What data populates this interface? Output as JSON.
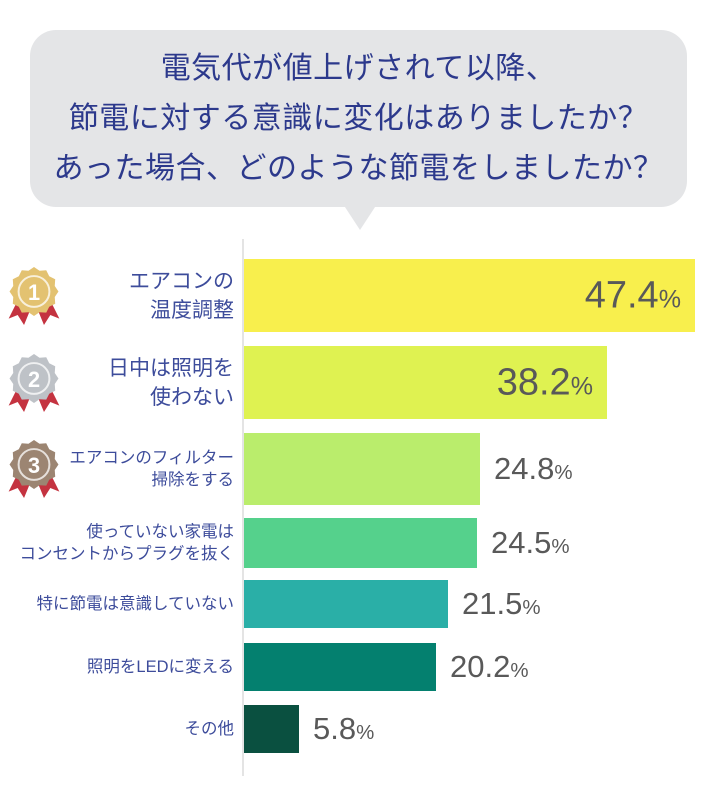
{
  "bubble": {
    "lines": [
      "電気代が値上げされて以降、",
      "節電に対する意識に変化はありましたか？",
      "あった場合、どのような節電をしましたか？"
    ],
    "bg_color": "#e4e5e7",
    "text_color": "#2c398c"
  },
  "chart_data": {
    "type": "bar",
    "orientation": "horizontal",
    "title": "電気代が値上げされて以降、節電に対する意識に変化はありましたか？あった場合、どのような節電をしましたか？",
    "unit": "%",
    "xlim": [
      0,
      50
    ],
    "grid": false,
    "legend": "none",
    "categories": [
      "エアコンの温度調整",
      "日中は照明を使わない",
      "エアコンのフィルター掃除をする",
      "使っていない家電はコンセントからプラグを抜く",
      "特に節電は意識していない",
      "照明をLEDに変える",
      "その他"
    ],
    "values": [
      47.4,
      38.2,
      24.8,
      24.5,
      21.5,
      20.2,
      5.8
    ],
    "value_label_color": "#595959",
    "category_label_color": "#3d4c9b",
    "axis_line_color": "#e4e4e4",
    "ribbon_color": "#c43340",
    "medal_colors": {
      "1": {
        "color": "#e3c271",
        "number_color": "#ffffff"
      },
      "2": {
        "color": "#bec2c7",
        "number_color": "#ffffff"
      },
      "3": {
        "color": "#9c8572",
        "number_color": "#ffffff"
      }
    },
    "items": [
      {
        "rank": 1,
        "label_lines": [
          "エアコンの",
          "温度調整"
        ],
        "value": 47.4,
        "color": "#f8ef4d",
        "value_label_position": "inside"
      },
      {
        "rank": 2,
        "label_lines": [
          "日中は照明を",
          "使わない"
        ],
        "value": 38.2,
        "color": "#dff251",
        "value_label_position": "inside"
      },
      {
        "rank": 3,
        "label_lines": [
          "エアコンのフィルター",
          "掃除をする"
        ],
        "value": 24.8,
        "color": "#baed6c",
        "value_label_position": "outside"
      },
      {
        "label_lines": [
          "使っていない家電は",
          "コンセントからプラグを抜く"
        ],
        "value": 24.5,
        "color": "#55d18c",
        "value_label_position": "outside"
      },
      {
        "label_lines": [
          "特に節電は意識していない"
        ],
        "value": 21.5,
        "color": "#2aafa7",
        "value_label_position": "outside"
      },
      {
        "label_lines": [
          "照明をLEDに変える"
        ],
        "value": 20.2,
        "color": "#04806f",
        "value_label_position": "outside"
      },
      {
        "label_lines": [
          "その他"
        ],
        "value": 5.8,
        "color": "#0a5040",
        "value_label_position": "outside"
      }
    ]
  }
}
